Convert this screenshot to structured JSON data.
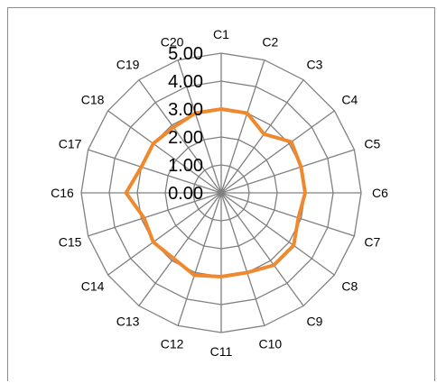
{
  "chart_data": {
    "type": "radar",
    "categories": [
      "C1",
      "C2",
      "C3",
      "C4",
      "C5",
      "C6",
      "C7",
      "C8",
      "C9",
      "C10",
      "C11",
      "C12",
      "C13",
      "C14",
      "C15",
      "C16",
      "C17",
      "C18",
      "C19",
      "C20"
    ],
    "series": [
      {
        "values": [
          3.0,
          3.0,
          2.6,
          3.1,
          3.0,
          3.0,
          2.9,
          3.2,
          3.2,
          3.0,
          3.0,
          3.1,
          2.9,
          3.0,
          2.9,
          3.4,
          3.0,
          3.0,
          2.9,
          3.0
        ],
        "color": "#F0892D"
      }
    ],
    "rlim": [
      0,
      5
    ],
    "ticks": [
      "0.00",
      "1.00",
      "2.00",
      "3.00",
      "4.00",
      "5.00"
    ],
    "grid": true,
    "grid_color": "#808080",
    "legend": "none"
  }
}
